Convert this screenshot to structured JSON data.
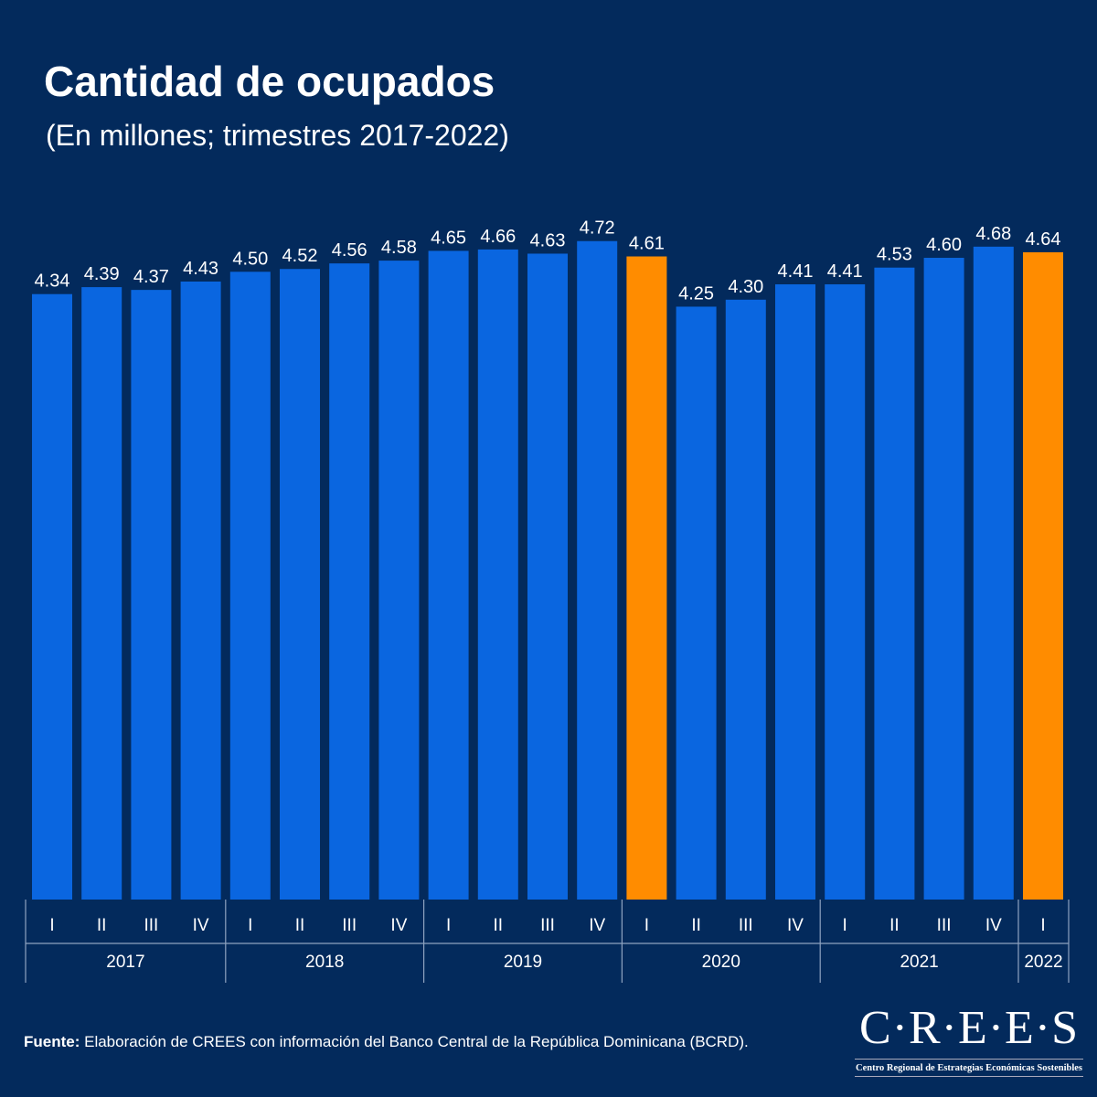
{
  "title": "Cantidad de ocupados",
  "subtitle": "(En millones; trimestres 2017-2022)",
  "source_label": "Fuente:",
  "source_text": " Elaboración de CREES con información del Banco Central de la República Dominicana (BCRD).",
  "logo": {
    "main": "C·R·E·E·S",
    "sub": "Centro Regional de Estrategias Económicas Sostenibles"
  },
  "colors": {
    "background": "#032a5c",
    "bar": "#0a66e0",
    "highlight": "#ff8c00"
  },
  "chart_data": {
    "type": "bar",
    "title": "Cantidad de ocupados",
    "subtitle": "(En millones; trimestres 2017-2022)",
    "categories": [
      "I",
      "II",
      "III",
      "IV",
      "I",
      "II",
      "III",
      "IV",
      "I",
      "II",
      "III",
      "IV",
      "I",
      "II",
      "III",
      "IV",
      "I",
      "II",
      "III",
      "IV",
      "I"
    ],
    "groups": [
      {
        "label": "2017",
        "count": 4
      },
      {
        "label": "2018",
        "count": 4
      },
      {
        "label": "2019",
        "count": 4
      },
      {
        "label": "2020",
        "count": 4
      },
      {
        "label": "2021",
        "count": 4
      },
      {
        "label": "2022",
        "count": 1
      }
    ],
    "values": [
      4.34,
      4.39,
      4.37,
      4.43,
      4.5,
      4.52,
      4.56,
      4.58,
      4.65,
      4.66,
      4.63,
      4.72,
      4.61,
      4.25,
      4.3,
      4.41,
      4.41,
      4.53,
      4.6,
      4.68,
      4.64
    ],
    "labels": [
      "4.34",
      "4.39",
      "4.37",
      "4.43",
      "4.50",
      "4.52",
      "4.56",
      "4.58",
      "4.65",
      "4.66",
      "4.63",
      "4.72",
      "4.61",
      "4.25",
      "4.30",
      "4.41",
      "4.41",
      "4.53",
      "4.60",
      "4.68",
      "4.64"
    ],
    "highlighted": [
      12,
      20
    ],
    "ylim": [
      0,
      4.72
    ],
    "grid": false,
    "xlabel": "",
    "ylabel": ""
  }
}
